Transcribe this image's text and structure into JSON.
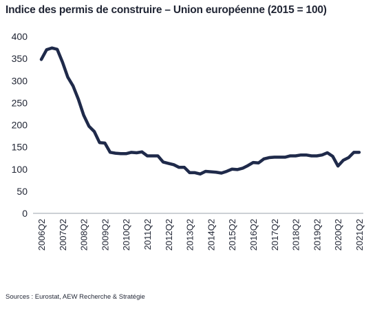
{
  "title": "Indice des permis de construire – Union européenne (2015 = 100)",
  "source": "Sources : Eurostat, AEW Recherche & Stratégie",
  "chart_data": {
    "type": "line",
    "title": "Indice des permis de construire – Union européenne (2015 = 100)",
    "xlabel": "",
    "ylabel": "",
    "ylim": [
      0,
      400
    ],
    "yticks": [
      "0",
      "50",
      "100",
      "150",
      "200",
      "250",
      "300",
      "350",
      "400"
    ],
    "xticks": [
      "2006Q2",
      "2007Q2",
      "2008Q2",
      "2009Q2",
      "2010Q2",
      "2011Q2",
      "2012Q2",
      "2013Q2",
      "2014Q2",
      "2015Q2",
      "2016Q2",
      "2017Q2",
      "2018Q2",
      "2019Q2",
      "2020Q2",
      "2021Q2"
    ],
    "grid": false,
    "legend": "none",
    "line_color": "#1f2a4a",
    "series": [
      {
        "x": [
          "2006Q2",
          "2006Q3",
          "2006Q4",
          "2007Q1",
          "2007Q2",
          "2007Q3",
          "2007Q4",
          "2008Q1",
          "2008Q2",
          "2008Q3",
          "2008Q4",
          "2009Q1",
          "2009Q2",
          "2009Q3",
          "2009Q4",
          "2010Q1",
          "2010Q2",
          "2010Q3",
          "2010Q4",
          "2011Q1",
          "2011Q2",
          "2011Q3",
          "2011Q4",
          "2012Q1",
          "2012Q2",
          "2012Q3",
          "2012Q4",
          "2013Q1",
          "2013Q2",
          "2013Q3",
          "2013Q4",
          "2014Q1",
          "2014Q2",
          "2014Q3",
          "2014Q4",
          "2015Q1",
          "2015Q2",
          "2015Q3",
          "2015Q4",
          "2016Q1",
          "2016Q2",
          "2016Q3",
          "2016Q4",
          "2017Q1",
          "2017Q2",
          "2017Q3",
          "2017Q4",
          "2018Q1",
          "2018Q2",
          "2018Q3",
          "2018Q4",
          "2019Q1",
          "2019Q2",
          "2019Q3",
          "2019Q4",
          "2020Q1",
          "2020Q2",
          "2020Q3",
          "2020Q4",
          "2021Q1",
          "2021Q2"
        ],
        "values": [
          348,
          370,
          374,
          371,
          342,
          308,
          288,
          258,
          222,
          197,
          185,
          160,
          159,
          138,
          136,
          135,
          135,
          138,
          137,
          139,
          130,
          130,
          130,
          116,
          113,
          110,
          104,
          104,
          92,
          92,
          89,
          95,
          94,
          93,
          91,
          95,
          100,
          99,
          102,
          108,
          115,
          114,
          123,
          126,
          127,
          127,
          127,
          130,
          130,
          132,
          132,
          130,
          130,
          132,
          137,
          129,
          107,
          120,
          126,
          138,
          138
        ]
      }
    ]
  }
}
